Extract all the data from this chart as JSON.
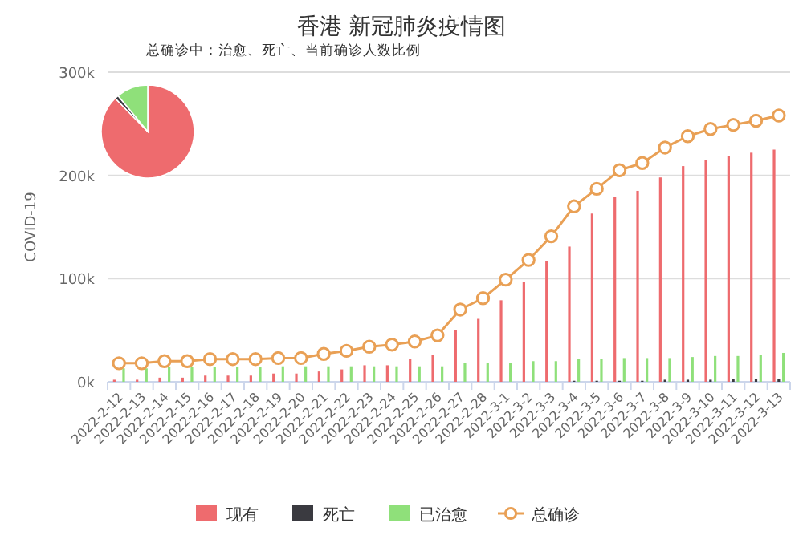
{
  "chart_data": [
    {
      "type": "bar",
      "title": "香港 新冠肺炎疫情图",
      "ylabel": "COVID-19",
      "categories": [
        "2022-2-12",
        "2022-2-13",
        "2022-2-14",
        "2022-2-15",
        "2022-2-16",
        "2022-2-17",
        "2022-2-18",
        "2022-2-19",
        "2022-2-20",
        "2022-2-21",
        "2022-2-22",
        "2022-2-23",
        "2022-2-24",
        "2022-2-25",
        "2022-2-26",
        "2022-2-27",
        "2022-2-28",
        "2022-3-1",
        "2022-3-2",
        "2022-3-3",
        "2022-3-4",
        "2022-3-5",
        "2022-3-6",
        "2022-3-7",
        "2022-3-8",
        "2022-3-9",
        "2022-3-10",
        "2022-3-11",
        "2022-3-12",
        "2022-3-13"
      ],
      "series": [
        {
          "name": "现有",
          "color": "#ee6b6e",
          "values": [
            2000,
            2000,
            4000,
            4000,
            6000,
            6000,
            6000,
            8000,
            8000,
            10000,
            12000,
            16000,
            16000,
            22000,
            26000,
            50000,
            61000,
            79000,
            97000,
            117000,
            131000,
            163000,
            179000,
            185000,
            198000,
            209000,
            215000,
            219000,
            222000,
            225000
          ]
        },
        {
          "name": "死亡",
          "color": "#3a3a40",
          "values": [
            null,
            null,
            null,
            null,
            null,
            null,
            null,
            null,
            null,
            null,
            null,
            null,
            null,
            null,
            null,
            null,
            null,
            null,
            null,
            null,
            1000,
            1000,
            1000,
            1000,
            2000,
            2000,
            2000,
            3000,
            3000,
            3000
          ]
        },
        {
          "name": "已治愈",
          "color": "#8fe07a",
          "values": [
            13000,
            13000,
            14000,
            14000,
            14000,
            14000,
            14000,
            15000,
            15000,
            15000,
            15000,
            15000,
            15000,
            15000,
            15000,
            18000,
            18000,
            18000,
            20000,
            20000,
            22000,
            22000,
            23000,
            23000,
            23000,
            24000,
            25000,
            25000,
            26000,
            28000
          ]
        },
        {
          "name": "总确诊",
          "color": "#e9a055",
          "type": "line",
          "marker": "circle",
          "values": [
            18000,
            18000,
            20000,
            20000,
            22000,
            22000,
            22000,
            23000,
            23000,
            27000,
            30000,
            34000,
            36000,
            39000,
            45000,
            70000,
            81000,
            99000,
            118000,
            141000,
            170000,
            187000,
            205000,
            212000,
            227000,
            238000,
            245000,
            249000,
            253000,
            258000
          ]
        }
      ],
      "ylim": [
        0,
        300000
      ],
      "yticks": [
        {
          "value": 0,
          "label": "0k"
        },
        {
          "value": 100000,
          "label": "100k"
        },
        {
          "value": 200000,
          "label": "200k"
        },
        {
          "value": 300000,
          "label": "300k"
        }
      ],
      "grid": "y",
      "legend": "bottom"
    },
    {
      "type": "pie",
      "title": "总确诊中：治愈、死亡、当前确诊人数比例",
      "categories": [
        null,
        null,
        null
      ],
      "values": [
        87.7,
        1.3,
        11
      ],
      "colors": [
        "#ee6b6e",
        "#3a3a40",
        "#8fe07a"
      ]
    }
  ]
}
